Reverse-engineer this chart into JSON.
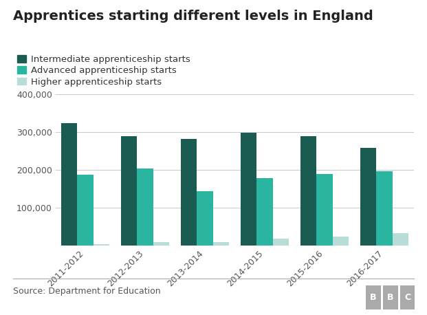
{
  "title": "Apprentices starting different levels in England",
  "categories": [
    "2011-2012",
    "2012-2013",
    "2013-2014",
    "2014-2015",
    "2015-2016",
    "2016-2017"
  ],
  "intermediate": [
    325000,
    290000,
    283000,
    298000,
    290000,
    258000
  ],
  "advanced": [
    187000,
    205000,
    144000,
    179000,
    190000,
    197000
  ],
  "higher": [
    4000,
    9000,
    9000,
    18000,
    25000,
    34000
  ],
  "color_intermediate": "#1a5c52",
  "color_advanced": "#2ab5a0",
  "color_higher": "#b8ddd8",
  "legend_labels": [
    "Intermediate apprenticeship starts",
    "Advanced apprenticeship starts",
    "Higher apprenticeship starts"
  ],
  "ylim": [
    0,
    400000
  ],
  "yticks": [
    0,
    100000,
    200000,
    300000,
    400000
  ],
  "ytick_labels": [
    "",
    "100,000",
    "200,000",
    "300,000",
    "400,000"
  ],
  "source_text": "Source: Department for Education",
  "bbc_text": "BBC",
  "background_color": "#ffffff",
  "bar_width": 0.27,
  "title_fontsize": 14,
  "legend_fontsize": 9.5,
  "tick_fontsize": 9,
  "source_fontsize": 9
}
